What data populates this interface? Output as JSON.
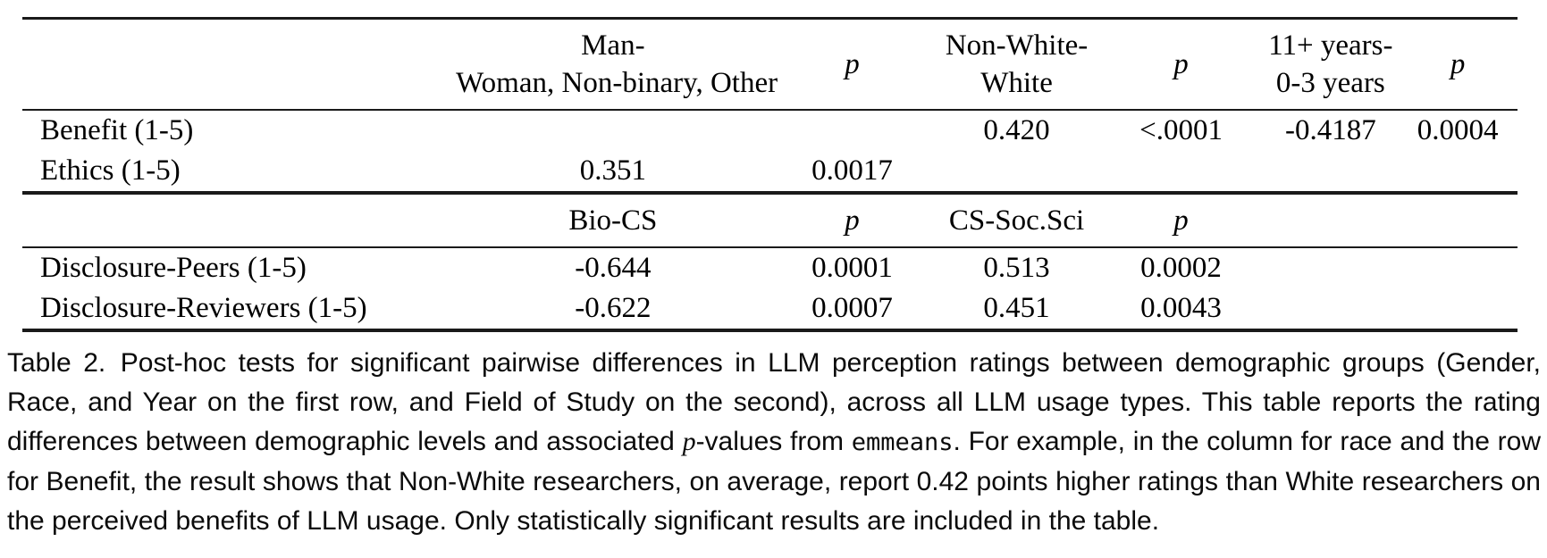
{
  "page": {
    "background": "#ffffff",
    "text_color": "#000000",
    "rule_color": "#1a1a1a"
  },
  "table": {
    "column_widths_percent": [
      29,
      21,
      11,
      11,
      11,
      9,
      8
    ],
    "sections": [
      {
        "name": "demographics",
        "columns": [
          {
            "lines": [
              "Man-",
              "Woman, Non-binary, Other"
            ],
            "italic": false
          },
          {
            "lines": [
              "p"
            ],
            "italic": true
          },
          {
            "lines": [
              "Non-White-",
              "White"
            ],
            "italic": false
          },
          {
            "lines": [
              "p"
            ],
            "italic": true
          },
          {
            "lines": [
              "11+ years-",
              "0-3 years"
            ],
            "italic": false
          },
          {
            "lines": [
              "p"
            ],
            "italic": true
          }
        ],
        "rows": [
          {
            "label": "Benefit (1-5)",
            "values": [
              "",
              "",
              "0.420",
              "<.0001",
              "-0.4187",
              "0.0004"
            ]
          },
          {
            "label": "Ethics (1-5)",
            "values": [
              "0.351",
              "0.0017",
              "",
              "",
              "",
              ""
            ]
          }
        ]
      },
      {
        "name": "field-of-study",
        "columns": [
          {
            "lines": [
              "Bio-CS"
            ],
            "italic": false
          },
          {
            "lines": [
              "p"
            ],
            "italic": true
          },
          {
            "lines": [
              "CS-Soc.Sci"
            ],
            "italic": false
          },
          {
            "lines": [
              "p"
            ],
            "italic": true
          },
          {
            "lines": [
              ""
            ],
            "italic": false
          },
          {
            "lines": [
              ""
            ],
            "italic": false
          }
        ],
        "rows": [
          {
            "label": "Disclosure-Peers (1-5)",
            "values": [
              "-0.644",
              "0.0001",
              "0.513",
              "0.0002",
              "",
              ""
            ]
          },
          {
            "label": "Disclosure-Reviewers (1-5)",
            "values": [
              "-0.622",
              "0.0007",
              "0.451",
              "0.0043",
              "",
              ""
            ]
          }
        ]
      }
    ]
  },
  "caption": {
    "parts": [
      {
        "text": "Table 2.",
        "style": "label"
      },
      {
        "text": "Post-hoc tests for significant pairwise differences in LLM perception ratings between demographic groups (Gender, Race, and Year on the first row, and Field of Study on the second), across all LLM usage types. This table reports the rating differences between demographic levels and associated ",
        "style": "normal"
      },
      {
        "text": "p",
        "style": "italic-serif"
      },
      {
        "text": "-values from ",
        "style": "normal"
      },
      {
        "text": "emmeans",
        "style": "mono"
      },
      {
        "text": ". For example, in the column for race and the row for Benefit, the result shows that Non-White researchers, on average, report 0.42 points higher ratings than White researchers on the perceived benefits of LLM usage. Only statistically significant results are included in the table.",
        "style": "normal"
      }
    ]
  }
}
